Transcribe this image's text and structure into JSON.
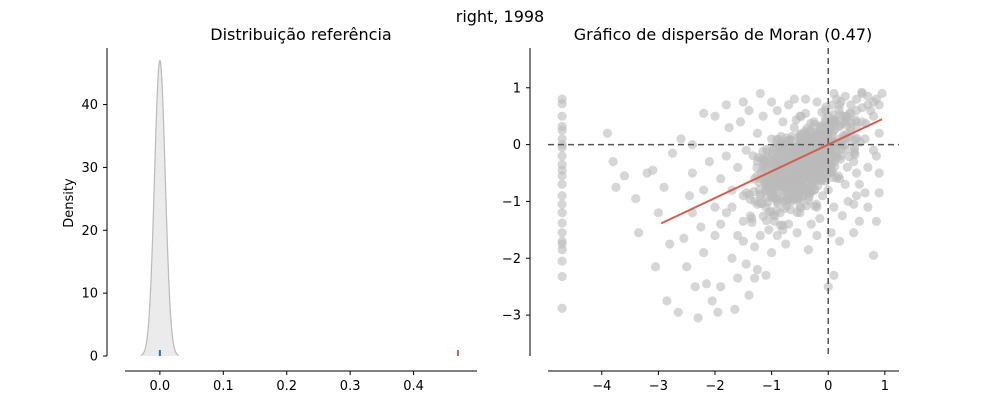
{
  "suptitle": "right, 1998",
  "chart_data": [
    {
      "type": "area",
      "title": "Distribuição referência",
      "xlabel": "",
      "ylabel": "Density",
      "xlim": [
        -0.055,
        0.5
      ],
      "ylim": [
        0,
        49
      ],
      "xticks": [
        0.0,
        0.1,
        0.2,
        0.3,
        0.4
      ],
      "xtick_labels": [
        "0.0",
        "0.1",
        "0.2",
        "0.3",
        "0.4"
      ],
      "yticks": [
        0,
        10,
        20,
        30,
        40
      ],
      "ytick_labels": [
        "0",
        "10",
        "20",
        "30",
        "40"
      ],
      "kde": {
        "color": "#bababa",
        "fill": "#d3d3d3",
        "x": [
          -0.03,
          -0.025,
          -0.02,
          -0.016,
          -0.012,
          -0.009,
          -0.006,
          -0.004,
          -0.002,
          0.0,
          0.002,
          0.004,
          0.006,
          0.009,
          0.012,
          0.016,
          0.02,
          0.025,
          0.03
        ],
        "y": [
          0.0,
          0.3,
          1.2,
          3.5,
          9.0,
          16.0,
          26.0,
          34.5,
          42.5,
          47.0,
          42.5,
          34.5,
          26.0,
          16.0,
          9.0,
          3.5,
          1.2,
          0.3,
          0.0
        ]
      },
      "markers": [
        {
          "x": 0.0,
          "color": "#1f77b4"
        },
        {
          "x": 0.47,
          "color": "#d1604e"
        }
      ],
      "grid": false
    },
    {
      "type": "scatter",
      "title": "Gráfico de dispersão de Moran (0.47)",
      "xlabel": "",
      "ylabel": "",
      "xlim": [
        -4.95,
        1.25
      ],
      "ylim": [
        -3.72,
        1.7
      ],
      "xticks": [
        -4,
        -3,
        -2,
        -1,
        0,
        1
      ],
      "xtick_labels": [
        "−4",
        "−3",
        "−2",
        "−1",
        "0",
        "1"
      ],
      "yticks": [
        -3,
        -2,
        -1,
        0,
        1
      ],
      "ytick_labels": [
        "−3",
        "−2",
        "−1",
        "0",
        "1"
      ],
      "point_color": "#bababa",
      "fit_line": {
        "slope": 0.47,
        "x_range": [
          -2.95,
          0.95
        ],
        "color": "#d1604e"
      },
      "reference_lines": {
        "x": 0,
        "y": 0,
        "style": "dashed"
      },
      "points": [
        [
          -4.7,
          0.8
        ],
        [
          -4.7,
          0.72
        ],
        [
          -4.7,
          0.5
        ],
        [
          -4.7,
          0.32
        ],
        [
          -4.7,
          0.25
        ],
        [
          -4.7,
          0.1
        ],
        [
          -4.7,
          -0.05
        ],
        [
          -4.7,
          -0.2
        ],
        [
          -4.7,
          -0.35
        ],
        [
          -4.7,
          -0.55
        ],
        [
          -4.7,
          -0.7
        ],
        [
          -4.7,
          -0.9
        ],
        [
          -4.7,
          -1.05
        ],
        [
          -4.7,
          -1.2
        ],
        [
          -4.7,
          -1.38
        ],
        [
          -4.7,
          -1.55
        ],
        [
          -4.7,
          -1.7
        ],
        [
          -4.7,
          -1.85
        ],
        [
          -4.7,
          -2.05
        ],
        [
          -4.7,
          -2.32
        ],
        [
          -4.7,
          -2.88
        ],
        [
          -4.7,
          0.0
        ],
        [
          -4.7,
          -0.45
        ],
        [
          -4.7,
          -1.75
        ],
        [
          -3.9,
          0.2
        ],
        [
          -3.8,
          -0.3
        ],
        [
          -3.75,
          -0.75
        ],
        [
          -3.6,
          -0.55
        ],
        [
          -3.4,
          -0.95
        ],
        [
          -3.35,
          -1.55
        ],
        [
          -3.2,
          -0.5
        ],
        [
          -3.1,
          -0.45
        ],
        [
          -3.05,
          -2.15
        ],
        [
          -3.0,
          -1.2
        ],
        [
          -2.9,
          -0.75
        ],
        [
          -2.85,
          -2.75
        ],
        [
          -2.8,
          -1.75
        ],
        [
          -2.75,
          -0.15
        ],
        [
          -2.65,
          -2.95
        ],
        [
          -2.55,
          -1.65
        ],
        [
          -2.5,
          -2.15
        ],
        [
          -2.45,
          -0.9
        ],
        [
          -2.4,
          0.0
        ],
        [
          -2.35,
          -2.5
        ],
        [
          -2.3,
          -3.05
        ],
        [
          -2.25,
          -1.45
        ],
        [
          -2.2,
          0.55
        ],
        [
          -2.15,
          -2.45
        ],
        [
          -2.05,
          -2.75
        ],
        [
          -2.0,
          -1.6
        ],
        [
          -1.95,
          -2.95
        ],
        [
          -1.9,
          -2.5
        ],
        [
          -1.8,
          -1.2
        ],
        [
          -1.7,
          -2.0
        ],
        [
          -1.65,
          -2.9
        ],
        [
          -1.6,
          -2.35
        ],
        [
          -1.5,
          -1.35
        ],
        [
          -1.45,
          -2.1
        ],
        [
          -1.4,
          -2.65
        ],
        [
          -1.3,
          -2.35
        ],
        [
          -1.25,
          -2.2
        ],
        [
          -1.1,
          -2.3
        ],
        [
          -1.0,
          -1.9
        ],
        [
          -0.9,
          -1.0
        ],
        [
          -0.8,
          -1.5
        ],
        [
          -0.5,
          -0.4
        ],
        [
          -0.2,
          -1.6
        ],
        [
          0.0,
          -2.5
        ],
        [
          0.1,
          -2.3
        ],
        [
          0.2,
          -1.7
        ],
        [
          0.45,
          -1.55
        ],
        [
          0.5,
          -0.9
        ],
        [
          0.55,
          -1.35
        ],
        [
          0.8,
          -1.95
        ],
        [
          0.85,
          -1.35
        ],
        [
          0.9,
          -0.85
        ],
        [
          -2.6,
          0.1
        ],
        [
          -2.4,
          -0.5
        ],
        [
          -2.2,
          -0.8
        ],
        [
          -2.1,
          -0.3
        ],
        [
          -2.0,
          -1.1
        ],
        [
          -1.9,
          -0.6
        ],
        [
          -1.8,
          -0.2
        ],
        [
          -1.75,
          0.3
        ],
        [
          -1.7,
          -0.8
        ],
        [
          -1.6,
          -0.4
        ],
        [
          -1.55,
          0.4
        ],
        [
          -1.5,
          -0.9
        ],
        [
          -1.45,
          -0.1
        ],
        [
          -1.4,
          0.6
        ],
        [
          -1.35,
          -1.3
        ],
        [
          -1.3,
          -0.6
        ],
        [
          -1.25,
          0.2
        ],
        [
          -1.2,
          -0.9
        ],
        [
          -1.15,
          0.5
        ],
        [
          -1.1,
          -0.3
        ],
        [
          -1.05,
          -1.5
        ],
        [
          -1.0,
          0.1
        ],
        [
          -0.95,
          -0.7
        ],
        [
          -0.9,
          0.6
        ],
        [
          -0.85,
          -1.2
        ],
        [
          -0.8,
          0.0
        ],
        [
          -0.75,
          -0.5
        ],
        [
          -0.7,
          0.7
        ],
        [
          -0.65,
          -1.0
        ],
        [
          -0.6,
          0.3
        ],
        [
          -0.55,
          -0.2
        ],
        [
          -0.5,
          0.5
        ],
        [
          -0.45,
          -0.8
        ],
        [
          -0.4,
          0.8
        ],
        [
          -0.35,
          -0.1
        ],
        [
          -0.3,
          -0.6
        ],
        [
          -0.25,
          0.4
        ],
        [
          -0.2,
          -1.1
        ],
        [
          -0.15,
          0.2
        ],
        [
          -0.1,
          -0.4
        ],
        [
          -0.05,
          0.6
        ],
        [
          0.0,
          -0.8
        ],
        [
          0.05,
          0.3
        ],
        [
          0.1,
          -0.2
        ],
        [
          0.15,
          0.8
        ],
        [
          0.2,
          -0.6
        ],
        [
          0.25,
          0.5
        ],
        [
          0.3,
          0.0
        ],
        [
          0.35,
          -1.0
        ],
        [
          0.4,
          0.7
        ],
        [
          0.45,
          -0.3
        ],
        [
          0.5,
          0.4
        ],
        [
          0.55,
          -0.7
        ],
        [
          0.6,
          0.9
        ],
        [
          0.65,
          0.1
        ],
        [
          0.7,
          -0.4
        ],
        [
          0.75,
          0.6
        ],
        [
          0.8,
          -0.1
        ],
        [
          0.85,
          0.8
        ],
        [
          0.9,
          0.2
        ],
        [
          0.95,
          0.9
        ],
        [
          0.9,
          -0.5
        ],
        [
          0.7,
          0.85
        ],
        [
          0.5,
          0.8
        ],
        [
          0.3,
          0.85
        ],
        [
          0.1,
          0.9
        ],
        [
          -1.0,
          -0.5
        ],
        [
          -0.9,
          -0.2
        ],
        [
          -0.8,
          -0.8
        ],
        [
          -0.7,
          -0.3
        ],
        [
          -0.6,
          -0.6
        ],
        [
          -0.5,
          -0.1
        ],
        [
          -0.4,
          -0.4
        ],
        [
          -0.3,
          0.1
        ],
        [
          -0.2,
          -0.2
        ],
        [
          -0.1,
          0.0
        ],
        [
          0.0,
          0.2
        ],
        [
          0.1,
          0.4
        ],
        [
          0.2,
          0.1
        ],
        [
          0.3,
          0.5
        ],
        [
          0.4,
          0.3
        ],
        [
          0.5,
          0.6
        ],
        [
          0.6,
          0.4
        ],
        [
          0.7,
          0.7
        ],
        [
          0.8,
          0.5
        ],
        [
          0.9,
          0.7
        ],
        [
          -1.6,
          -1.6
        ],
        [
          -1.3,
          -1.8
        ],
        [
          -1.1,
          -1.1
        ],
        [
          -0.9,
          -1.6
        ],
        [
          -0.7,
          -1.4
        ],
        [
          -0.5,
          -1.2
        ],
        [
          -0.3,
          -1.4
        ],
        [
          -0.1,
          -0.9
        ],
        [
          0.1,
          -1.1
        ],
        [
          0.3,
          -0.7
        ],
        [
          0.5,
          -0.5
        ],
        [
          0.7,
          -1.1
        ],
        [
          0.85,
          -0.2
        ],
        [
          -1.2,
          0.9
        ],
        [
          -1.0,
          0.75
        ],
        [
          -0.8,
          0.4
        ],
        [
          -0.6,
          0.8
        ],
        [
          -0.4,
          0.55
        ],
        [
          -0.2,
          0.75
        ],
        [
          0.0,
          0.5
        ],
        [
          0.2,
          0.7
        ],
        [
          0.4,
          0.55
        ],
        [
          0.6,
          0.65
        ],
        [
          0.8,
          0.75
        ],
        [
          -1.8,
          0.7
        ],
        [
          -1.5,
          0.75
        ],
        [
          -2.0,
          0.5
        ],
        [
          -2.4,
          -1.2
        ],
        [
          -2.2,
          -1.9
        ],
        [
          -1.9,
          -1.4
        ],
        [
          -1.7,
          -1.1
        ],
        [
          -1.5,
          -1.7
        ],
        [
          -1.3,
          -1.0
        ],
        [
          -1.2,
          -1.6
        ],
        [
          -0.95,
          -1.35
        ],
        [
          -0.75,
          -1.75
        ],
        [
          -0.55,
          -1.55
        ],
        [
          -0.35,
          -1.85
        ],
        [
          -0.15,
          -1.3
        ],
        [
          0.05,
          -1.55
        ],
        [
          0.25,
          -1.25
        ],
        [
          0.45,
          -1.05
        ],
        [
          0.65,
          -0.85
        ]
      ]
    }
  ]
}
